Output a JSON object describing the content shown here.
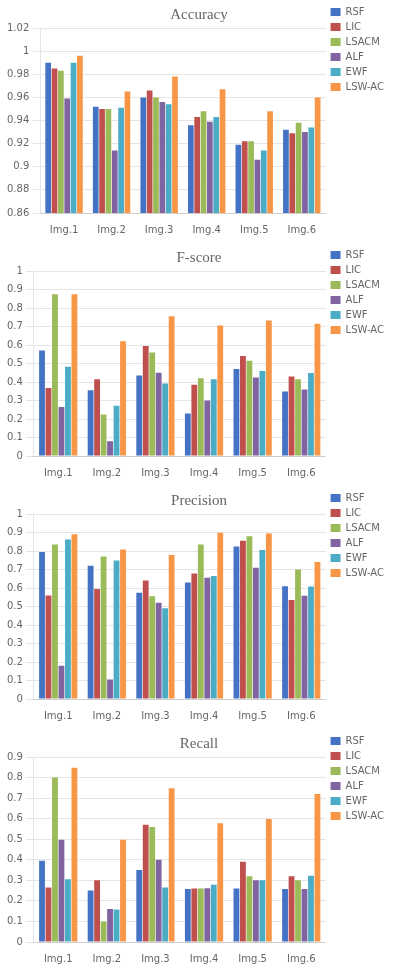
{
  "chart_data": [
    {
      "type": "bar",
      "title": "Accuracy",
      "categories": [
        "Img.1",
        "Img.2",
        "Img.3",
        "Img.4",
        "Img.5",
        "Img.6"
      ],
      "series": [
        {
          "name": "RSF",
          "color": "#4472C4",
          "values": [
            0.99,
            0.952,
            0.96,
            0.936,
            0.919,
            0.932
          ]
        },
        {
          "name": "LIC",
          "color": "#C0504D",
          "values": [
            0.985,
            0.95,
            0.966,
            0.943,
            0.922,
            0.929
          ]
        },
        {
          "name": "LSACM",
          "color": "#9BBB59",
          "values": [
            0.983,
            0.95,
            0.96,
            0.948,
            0.922,
            0.938
          ]
        },
        {
          "name": "ALF",
          "color": "#8064A2",
          "values": [
            0.959,
            0.914,
            0.956,
            0.939,
            0.906,
            0.93
          ]
        },
        {
          "name": "EWF",
          "color": "#4BACC6",
          "values": [
            0.99,
            0.951,
            0.954,
            0.943,
            0.914,
            0.934
          ]
        },
        {
          "name": "LSW-AC",
          "color": "#F79646",
          "values": [
            0.996,
            0.965,
            0.978,
            0.967,
            0.948,
            0.96
          ]
        }
      ],
      "ylim": [
        0.86,
        1.02
      ],
      "yticks": [
        0.86,
        0.88,
        0.9,
        0.92,
        0.94,
        0.96,
        0.98,
        1,
        1.02
      ],
      "grid": true,
      "legend": "right"
    },
    {
      "type": "bar",
      "title": "F-score",
      "categories": [
        "Img.1",
        "Img.2",
        "Img.3",
        "Img.4",
        "Img.5",
        "Img.6"
      ],
      "series": [
        {
          "name": "RSF",
          "color": "#4472C4",
          "values": [
            0.57,
            0.355,
            0.435,
            0.23,
            0.47,
            0.348
          ]
        },
        {
          "name": "LIC",
          "color": "#C0504D",
          "values": [
            0.368,
            0.415,
            0.595,
            0.385,
            0.54,
            0.43
          ]
        },
        {
          "name": "LSACM",
          "color": "#9BBB59",
          "values": [
            0.875,
            0.225,
            0.56,
            0.42,
            0.515,
            0.415
          ]
        },
        {
          "name": "ALF",
          "color": "#8064A2",
          "values": [
            0.265,
            0.08,
            0.45,
            0.3,
            0.425,
            0.36
          ]
        },
        {
          "name": "EWF",
          "color": "#4BACC6",
          "values": [
            0.482,
            0.272,
            0.392,
            0.415,
            0.46,
            0.448
          ]
        },
        {
          "name": "LSW-AC",
          "color": "#F79646",
          "values": [
            0.875,
            0.62,
            0.755,
            0.705,
            0.732,
            0.715
          ]
        }
      ],
      "ylim": [
        0,
        1
      ],
      "yticks": [
        0,
        0.1,
        0.2,
        0.3,
        0.4,
        0.5,
        0.6,
        0.7,
        0.8,
        0.9,
        1
      ],
      "grid": true,
      "legend": "right"
    },
    {
      "type": "bar",
      "title": "Precision",
      "categories": [
        "Img.1",
        "Img.2",
        "Img.3",
        "Img.4",
        "Img.5",
        "Img.6"
      ],
      "series": [
        {
          "name": "RSF",
          "color": "#4472C4",
          "values": [
            0.795,
            0.72,
            0.575,
            0.63,
            0.825,
            0.61
          ]
        },
        {
          "name": "LIC",
          "color": "#C0504D",
          "values": [
            0.56,
            0.595,
            0.64,
            0.678,
            0.855,
            0.535
          ]
        },
        {
          "name": "LSACM",
          "color": "#9BBB59",
          "values": [
            0.835,
            0.77,
            0.555,
            0.835,
            0.88,
            0.7
          ]
        },
        {
          "name": "ALF",
          "color": "#8064A2",
          "values": [
            0.18,
            0.105,
            0.52,
            0.655,
            0.71,
            0.558
          ]
        },
        {
          "name": "EWF",
          "color": "#4BACC6",
          "values": [
            0.862,
            0.748,
            0.49,
            0.665,
            0.805,
            0.608
          ]
        },
        {
          "name": "LSW-AC",
          "color": "#F79646",
          "values": [
            0.89,
            0.808,
            0.778,
            0.898,
            0.895,
            0.74
          ]
        }
      ],
      "ylim": [
        0,
        1
      ],
      "yticks": [
        0,
        0.1,
        0.2,
        0.3,
        0.4,
        0.5,
        0.6,
        0.7,
        0.8,
        0.9,
        1
      ],
      "grid": true,
      "legend": "right"
    },
    {
      "type": "bar",
      "title": "Recall",
      "categories": [
        "Img.1",
        "Img.2",
        "Img.3",
        "Img.4",
        "Img.5",
        "Img.6"
      ],
      "series": [
        {
          "name": "RSF",
          "color": "#4472C4",
          "values": [
            0.395,
            0.25,
            0.35,
            0.258,
            0.26,
            0.258
          ]
        },
        {
          "name": "LIC",
          "color": "#C0504D",
          "values": [
            0.265,
            0.3,
            0.57,
            0.26,
            0.39,
            0.32
          ]
        },
        {
          "name": "LSACM",
          "color": "#9BBB59",
          "values": [
            0.8,
            0.1,
            0.56,
            0.26,
            0.32,
            0.3
          ]
        },
        {
          "name": "ALF",
          "color": "#8064A2",
          "values": [
            0.498,
            0.16,
            0.4,
            0.262,
            0.3,
            0.258
          ]
        },
        {
          "name": "EWF",
          "color": "#4BACC6",
          "values": [
            0.305,
            0.158,
            0.265,
            0.278,
            0.3,
            0.322
          ]
        },
        {
          "name": "LSW-AC",
          "color": "#F79646",
          "values": [
            0.848,
            0.498,
            0.748,
            0.578,
            0.598,
            0.72
          ]
        }
      ],
      "ylim": [
        0,
        0.9
      ],
      "yticks": [
        0,
        0.1,
        0.2,
        0.3,
        0.4,
        0.5,
        0.6,
        0.7,
        0.8,
        0.9
      ],
      "grid": true,
      "legend": "right"
    }
  ]
}
